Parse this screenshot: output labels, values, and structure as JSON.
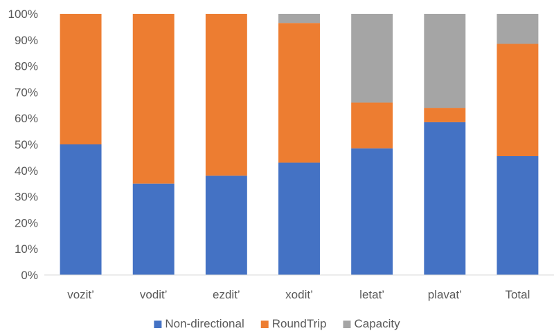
{
  "chart_data": {
    "type": "bar",
    "stacked": true,
    "percent": true,
    "categories": [
      "vozit’",
      "vodit’",
      "ezdit’",
      "xodit’",
      "letat’",
      "plavat’",
      "Total"
    ],
    "series": [
      {
        "name": "Non-directional",
        "color": "#4472C4",
        "values": [
          50,
          35,
          38,
          43,
          48.5,
          58.5,
          45.5
        ]
      },
      {
        "name": "RoundTrip",
        "color": "#ED7D31",
        "values": [
          50,
          65,
          62,
          53.5,
          17.5,
          5.5,
          43
        ]
      },
      {
        "name": "Capacity",
        "color": "#A5A5A5",
        "values": [
          0,
          0,
          0,
          3.5,
          34,
          36,
          11.5
        ]
      }
    ],
    "ylim": [
      0,
      100
    ],
    "yticks": [
      "0%",
      "10%",
      "20%",
      "30%",
      "40%",
      "50%",
      "60%",
      "70%",
      "80%",
      "90%",
      "100%"
    ],
    "title": "",
    "xlabel": "",
    "ylabel": "",
    "grid": false,
    "legend": "bottom"
  }
}
